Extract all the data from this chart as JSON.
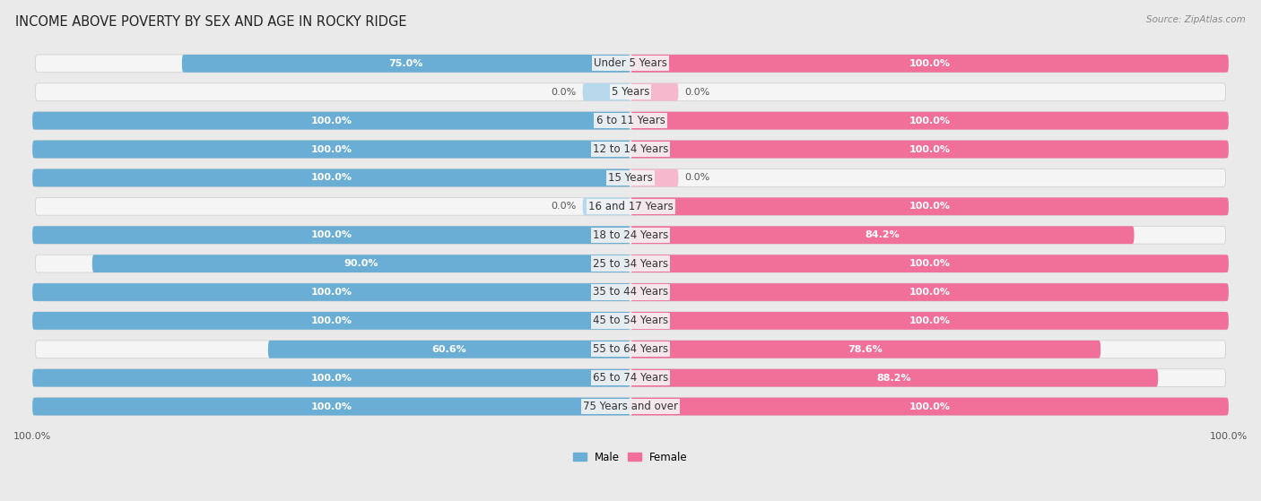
{
  "title": "INCOME ABOVE POVERTY BY SEX AND AGE IN ROCKY RIDGE",
  "source": "Source: ZipAtlas.com",
  "categories": [
    "Under 5 Years",
    "5 Years",
    "6 to 11 Years",
    "12 to 14 Years",
    "15 Years",
    "16 and 17 Years",
    "18 to 24 Years",
    "25 to 34 Years",
    "35 to 44 Years",
    "45 to 54 Years",
    "55 to 64 Years",
    "65 to 74 Years",
    "75 Years and over"
  ],
  "male_values": [
    75.0,
    0.0,
    100.0,
    100.0,
    100.0,
    0.0,
    100.0,
    90.0,
    100.0,
    100.0,
    60.6,
    100.0,
    100.0
  ],
  "female_values": [
    100.0,
    0.0,
    100.0,
    100.0,
    0.0,
    100.0,
    84.2,
    100.0,
    100.0,
    100.0,
    78.6,
    88.2,
    100.0
  ],
  "male_color": "#6aaed6",
  "female_color": "#f0709a",
  "male_light_color": "#b8d8ec",
  "female_light_color": "#f5b8cc",
  "background_color": "#eaeaea",
  "row_bg_color": "#f5f5f5",
  "legend_labels": [
    "Male",
    "Female"
  ],
  "title_fontsize": 10.5,
  "label_fontsize": 8.5,
  "value_fontsize": 8.0,
  "bottom_label": "100.0%"
}
